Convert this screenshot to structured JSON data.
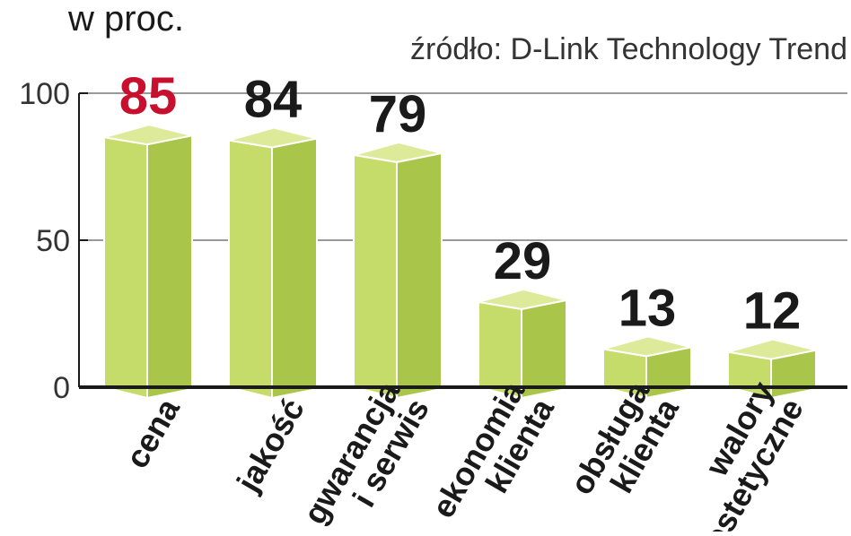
{
  "chart_data": {
    "type": "bar",
    "unit_label": "w proc.",
    "source": "źródło: D-Link Technology Trend",
    "categories": [
      [
        "cena"
      ],
      [
        "jakość"
      ],
      [
        "gwarancja",
        "i serwis"
      ],
      [
        "ekonomia",
        "klienta"
      ],
      [
        "obsługa",
        "klienta"
      ],
      [
        "walory",
        "estetyczne"
      ]
    ],
    "values": [
      85,
      84,
      79,
      29,
      13,
      12
    ],
    "value_label_colors": [
      "#c8102e",
      "#1a1a1a",
      "#1a1a1a",
      "#1a1a1a",
      "#1a1a1a",
      "#1a1a1a"
    ],
    "ylim": [
      0,
      100
    ],
    "yticks": [
      0,
      50,
      100
    ],
    "bar_colors": {
      "front": "#c5db6a",
      "side": "#a9c64a",
      "top": "#dcea9a",
      "edge": "#ffffff"
    },
    "grid": true,
    "grid_color": "#999999",
    "axis_color": "#1a1a1a"
  }
}
